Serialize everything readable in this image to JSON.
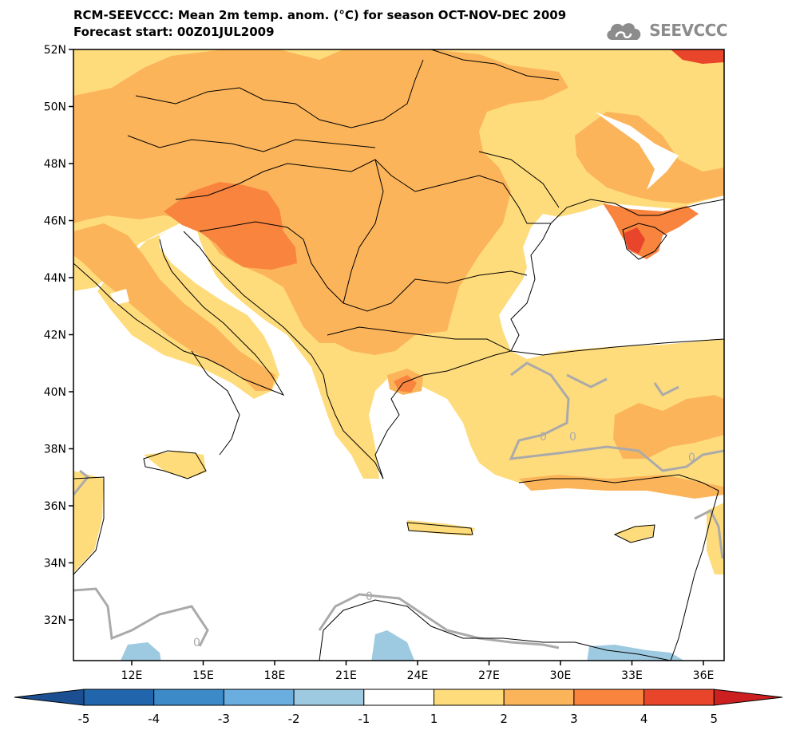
{
  "title": {
    "line1": "RCM-SEEVCCC: Mean 2m temp. anom. (°C) for season OCT-NOV-DEC 2009",
    "line2": "Forecast start: 00Z01JUL2009"
  },
  "logo": {
    "icon": "cloud-icon",
    "text": "SEEVCCC"
  },
  "map": {
    "latitude_labels": [
      "52N",
      "50N",
      "48N",
      "46N",
      "44N",
      "42N",
      "40N",
      "38N",
      "36N",
      "34N",
      "32N"
    ],
    "longitude_labels": [
      "12E",
      "15E",
      "18E",
      "21E",
      "24E",
      "27E",
      "30E",
      "33E",
      "36E"
    ],
    "contour_label": "0",
    "lat_range": [
      30.5,
      52
    ],
    "lon_range": [
      9.5,
      37
    ]
  },
  "colorbar": {
    "labels": [
      "-5",
      "-4",
      "-3",
      "-2",
      "-1",
      "1",
      "2",
      "3",
      "4",
      "5"
    ],
    "colors": [
      "#2166ac",
      "#3c8ac8",
      "#6aaee0",
      "#9ecae1",
      "#ffffff",
      "#fedc7c",
      "#fcb45a",
      "#f9843e",
      "#e8452a"
    ],
    "under_color": "#1b4f91",
    "over_color": "#cc1f1f"
  }
}
